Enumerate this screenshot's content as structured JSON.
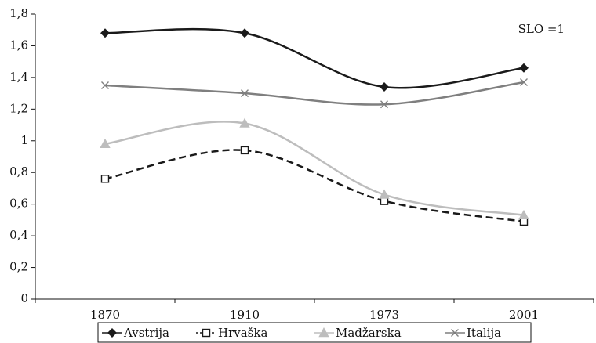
{
  "chart_data": {
    "type": "line",
    "categories": [
      "1870",
      "1910",
      "1973",
      "2001"
    ],
    "series": [
      {
        "name": "Avstrija",
        "color": "#1a1a1a",
        "marker": "diamond",
        "dashed": false,
        "values": [
          1.68,
          1.68,
          1.34,
          1.46
        ]
      },
      {
        "name": "Hrvaška",
        "color": "#1a1a1a",
        "marker": "square",
        "dashed": true,
        "values": [
          0.76,
          0.94,
          0.62,
          0.49
        ]
      },
      {
        "name": "Madžarska",
        "color": "#bdbdbd",
        "marker": "triangle",
        "dashed": false,
        "values": [
          0.98,
          1.11,
          0.66,
          0.53
        ]
      },
      {
        "name": "Italija",
        "color": "#7f7f7f",
        "marker": "x",
        "dashed": false,
        "values": [
          1.35,
          1.3,
          1.23,
          1.37
        ]
      }
    ],
    "annotation": "SLO =1",
    "ylim": [
      0,
      1.8
    ],
    "yticks": [
      0,
      {
        "value": 0.2,
        "label": "0,2"
      },
      {
        "value": 0.4,
        "label": "0,4"
      },
      {
        "value": 0.6,
        "label": "0,6"
      },
      {
        "value": 0.8,
        "label": "0,8"
      },
      1,
      {
        "value": 1.2,
        "label": "1,2"
      },
      {
        "value": 1.4,
        "label": "1,4"
      },
      {
        "value": 1.6,
        "label": "1,6"
      },
      {
        "value": 1.8,
        "label": "1,8"
      }
    ],
    "smooth": true,
    "legend": "bottom"
  }
}
